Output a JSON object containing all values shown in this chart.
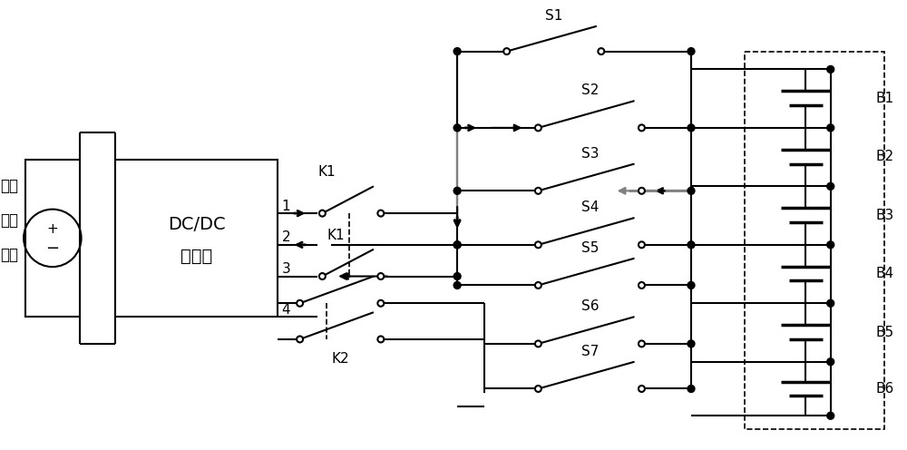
{
  "bg_color": "#ffffff",
  "line_color": "#000000",
  "gray_color": "#808080",
  "fig_width": 10.0,
  "fig_height": 4.96,
  "source_text": [
    "外部",
    "直流",
    "电源"
  ],
  "dcdc_text1": "DC/DC",
  "dcdc_text2": "变换器",
  "K1_label": "K1",
  "K2_label": "K2",
  "switches": [
    "S1",
    "S2",
    "S3",
    "S4",
    "S5",
    "S6",
    "S7"
  ],
  "batteries": [
    "B1",
    "B2",
    "B3",
    "B4",
    "B5",
    "B6"
  ],
  "ports": [
    "1",
    "2",
    "3",
    "4"
  ]
}
